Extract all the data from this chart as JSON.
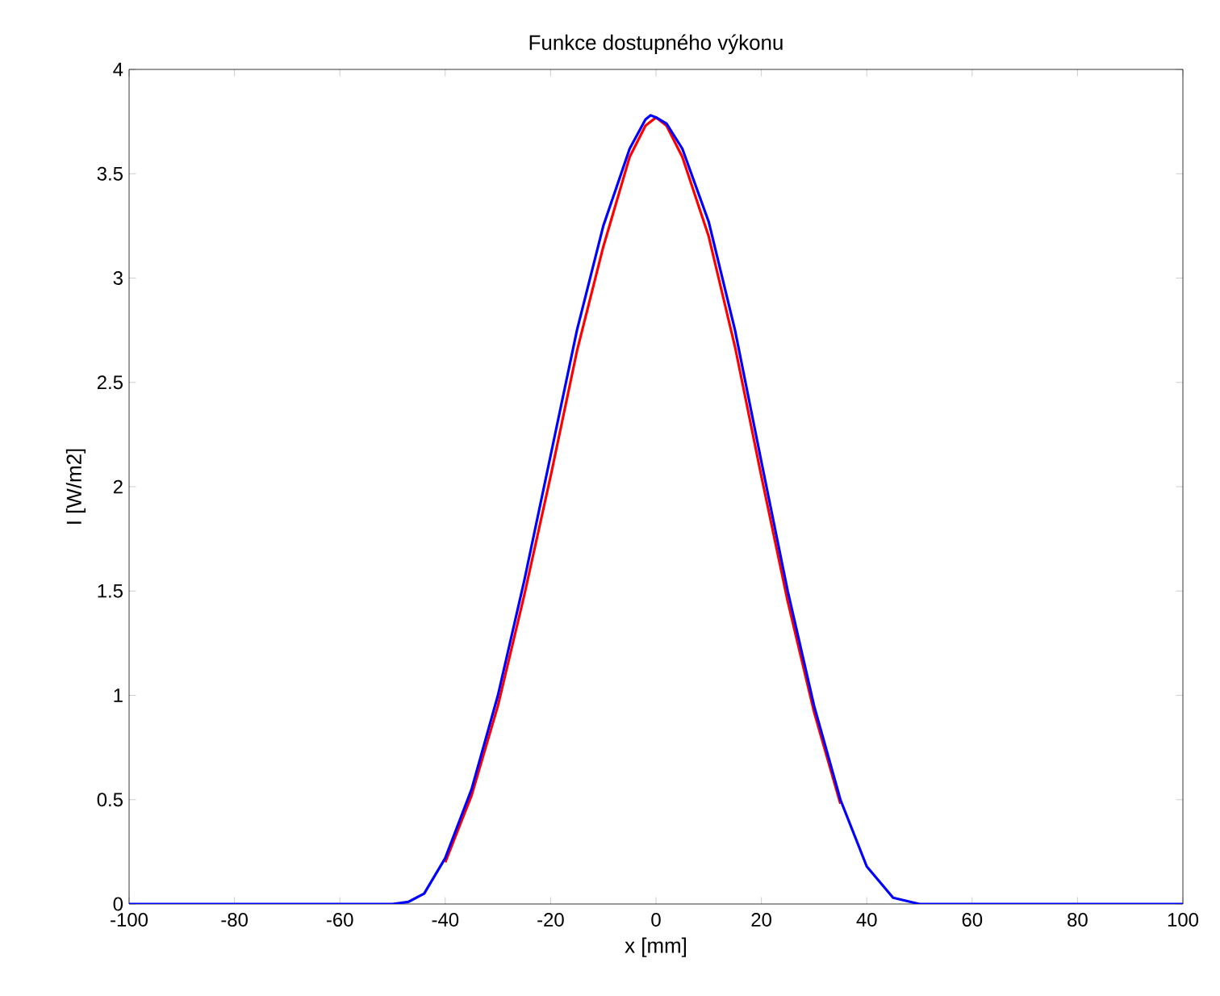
{
  "chart_data": {
    "type": "line",
    "title": "Funkce dostupného výkonu",
    "xlabel": "x [mm]",
    "ylabel": "I [W/m2]",
    "xlim": [
      -100,
      100
    ],
    "xticks": [
      -100,
      -80,
      -60,
      -40,
      -20,
      0,
      20,
      40,
      60,
      80,
      100
    ],
    "ylim": [
      0,
      4
    ],
    "yticks": [
      0,
      0.5,
      1,
      1.5,
      2,
      2.5,
      3,
      3.5,
      4
    ],
    "grid": false,
    "series": [
      {
        "color": "#ff0000",
        "x": [
          -40,
          -35,
          -30,
          -25,
          -20,
          -15,
          -10,
          -5,
          -2,
          0,
          2,
          5,
          10,
          15,
          20,
          25,
          30,
          35
        ],
        "values": [
          0.2,
          0.52,
          0.95,
          1.48,
          2.05,
          2.65,
          3.15,
          3.58,
          3.73,
          3.77,
          3.73,
          3.58,
          3.2,
          2.67,
          2.05,
          1.45,
          0.92,
          0.48
        ]
      },
      {
        "color": "#0000ff",
        "x": [
          -100,
          -60,
          -50,
          -47,
          -44,
          -40,
          -35,
          -30,
          -25,
          -20,
          -15,
          -10,
          -5,
          -2,
          -1,
          0,
          2,
          5,
          10,
          15,
          20,
          25,
          30,
          35,
          40,
          45,
          50,
          60,
          100
        ],
        "values": [
          0,
          0,
          0,
          0.01,
          0.05,
          0.22,
          0.55,
          1.0,
          1.55,
          2.15,
          2.75,
          3.25,
          3.62,
          3.76,
          3.78,
          3.77,
          3.74,
          3.62,
          3.27,
          2.75,
          2.12,
          1.5,
          0.95,
          0.5,
          0.18,
          0.03,
          0,
          0,
          0
        ]
      }
    ]
  }
}
